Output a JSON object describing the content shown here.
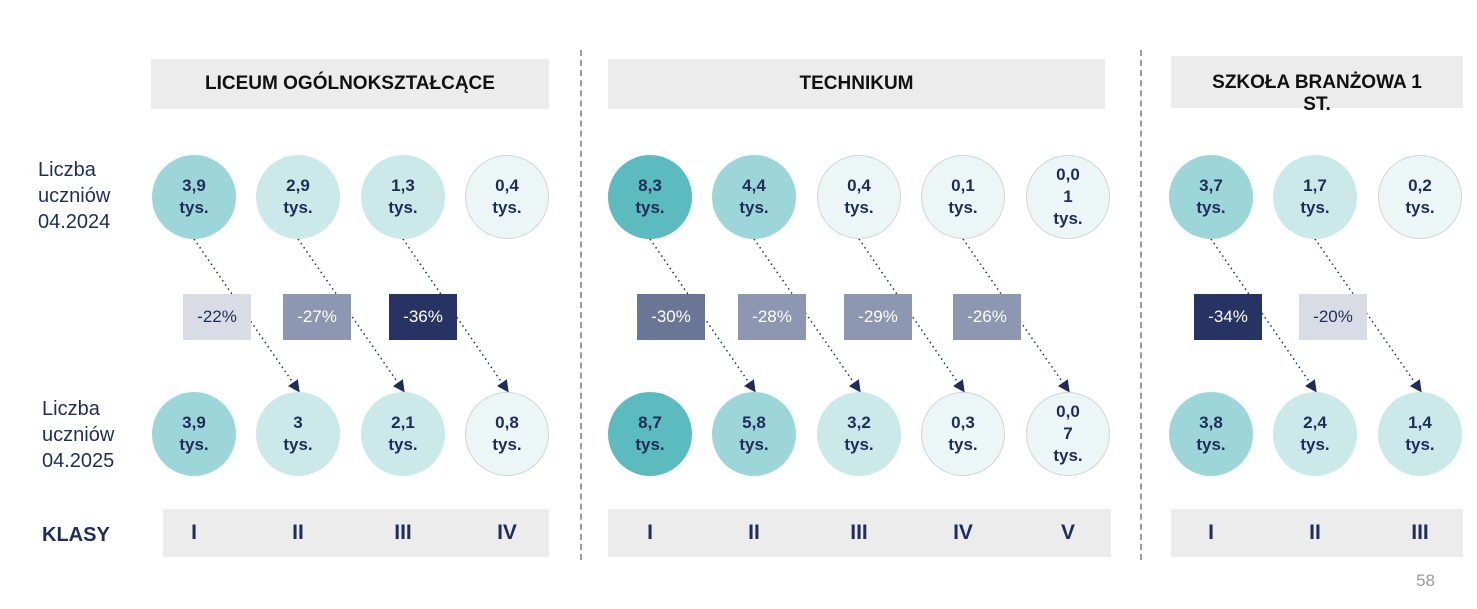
{
  "row_labels": {
    "y2024": "Liczba\nuczniów\n04.2024",
    "y2025": "Liczba\nuczniów\n04.2025",
    "klasy": "KLASY"
  },
  "page_number": "58",
  "colors": {
    "header_bg": "#ececec",
    "circle_strong": "#5bbbbf",
    "circle_mid": "#9dd6d8",
    "circle_light": "#cce9ea",
    "circle_pale": "#ecf6f7",
    "pct_dark": "#273463",
    "pct_mid": "#6a7696",
    "pct_light_mid": "#8e97b1",
    "pct_pale": "#d9dce5",
    "text_navy": "#1f2d5a"
  },
  "sections": [
    {
      "title": "LICEUM  OGÓLNOKSZTAŁCĄCE",
      "classes": [
        "I",
        "II",
        "III",
        "IV"
      ],
      "values_2024": [
        "3,9\ntys.",
        "2,9\ntys.",
        "1,3\ntys.",
        "0,4\ntys."
      ],
      "values_2025": [
        "3,9\ntys.",
        "3\ntys.",
        "2,1\ntys.",
        "0,8\ntys."
      ],
      "changes": [
        "-22%",
        "-27%",
        "-36%"
      ]
    },
    {
      "title": "TECHNIKUM",
      "classes": [
        "I",
        "II",
        "III",
        "IV",
        "V"
      ],
      "values_2024": [
        "8,3\ntys.",
        "4,4\ntys.",
        "0,4\ntys.",
        "0,1\ntys.",
        "0,0\n1\ntys."
      ],
      "values_2025": [
        "8,7\ntys.",
        "5,8\ntys.",
        "3,2\ntys.",
        "0,3\ntys.",
        "0,0\n7\ntys."
      ],
      "changes": [
        "-30%",
        "-28%",
        "-29%",
        "-26%"
      ]
    },
    {
      "title": "SZKOŁA BRANŻOWA 1\nST.",
      "classes": [
        "I",
        "II",
        "III"
      ],
      "values_2024": [
        "3,7\ntys.",
        "1,7\ntys.",
        "0,2\ntys."
      ],
      "values_2025": [
        "3,8\ntys.",
        "2,4\ntys.",
        "1,4\ntys."
      ],
      "changes": [
        "-34%",
        "-20%"
      ]
    }
  ]
}
